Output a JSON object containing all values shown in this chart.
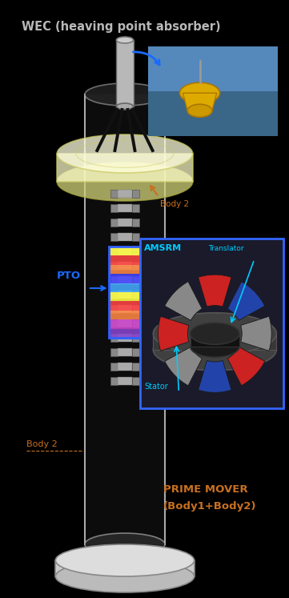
{
  "title": "WEC (heaving point absorber)",
  "fig_bg": "#000000",
  "labels": {
    "body2_arrow": "Body 2",
    "pto": "PTO",
    "body2_left": "Body 2",
    "amsrm": "AMSRM",
    "translator": "Translator",
    "stator": "Stator",
    "prime_mover_line1": "PRIME MOVER",
    "prime_mover_line2": "(Body1+Body2)"
  },
  "colors": {
    "fig_bg": "#000000",
    "title": "#b8b8b8",
    "body2_label": "#c87020",
    "pto_label": "#1a6aff",
    "amsrm_label": "#00ccff",
    "translator_label": "#00ccff",
    "stator_label": "#00ccff",
    "prime_mover": "#c87020",
    "arrow_blue": "#1a6aff",
    "arrow_brown": "#c87020",
    "pto_box_stroke": "#3060ff",
    "inset_bg": "#1a1a2a",
    "inset_border": "#3366ff",
    "photo_bg": "#4488aa"
  }
}
